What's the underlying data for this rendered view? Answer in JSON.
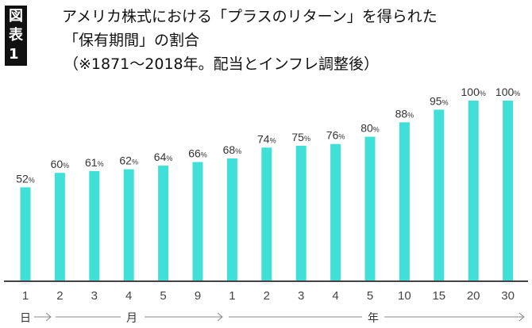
{
  "chart_data": {
    "type": "bar",
    "badge": "図表1",
    "title": "アメリカ株式における「プラスのリターン」を得られた",
    "title_line2": "「保有期間」の割合",
    "subtitle": "（※1871〜2018年。配当とインフレ調整後）",
    "categories": [
      "1",
      "2",
      "3",
      "4",
      "5",
      "9",
      "1",
      "2",
      "3",
      "4",
      "5",
      "10",
      "15",
      "20",
      "30"
    ],
    "values": [
      52,
      60,
      61,
      62,
      64,
      66,
      68,
      74,
      75,
      76,
      80,
      88,
      95,
      100,
      100
    ],
    "value_suffix": "%",
    "unit_groups": [
      {
        "label": "日",
        "categories": [
          "1"
        ]
      },
      {
        "label": "月",
        "categories": [
          "2",
          "3",
          "4",
          "5",
          "9"
        ]
      },
      {
        "label": "年",
        "categories": [
          "1",
          "2",
          "3",
          "4",
          "5",
          "10",
          "15",
          "20",
          "30"
        ]
      }
    ],
    "ylim": [
      0,
      100
    ],
    "grid": false,
    "bar_color": "#40e0d8"
  }
}
